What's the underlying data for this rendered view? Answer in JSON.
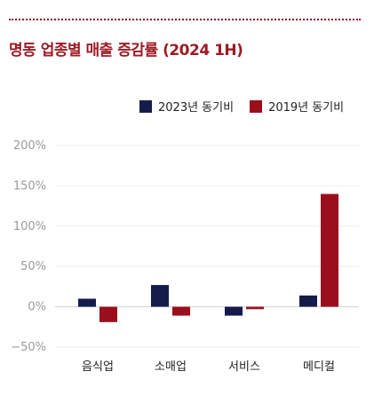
{
  "header": {
    "title": "명동 업종별 매출 증감률 (2024 1H)"
  },
  "chart_data": {
    "type": "bar",
    "categories": [
      "음식업",
      "소매업",
      "서비스",
      "메디컬"
    ],
    "series": [
      {
        "name": "2023년 동기비",
        "color": "#161c4a",
        "values": [
          10,
          27,
          -11,
          14
        ]
      },
      {
        "name": "2019년 동기비",
        "color": "#9b0f1c",
        "values": [
          -19,
          -11,
          -3,
          140
        ]
      }
    ],
    "y_ticks": [
      200,
      150,
      100,
      50,
      0,
      -50
    ],
    "y_tick_labels": [
      "200%",
      "150%",
      "100%",
      "50%",
      "0%",
      "−50%"
    ],
    "ylim": [
      -50,
      200
    ],
    "grid": true,
    "legend_position": "top-right"
  }
}
